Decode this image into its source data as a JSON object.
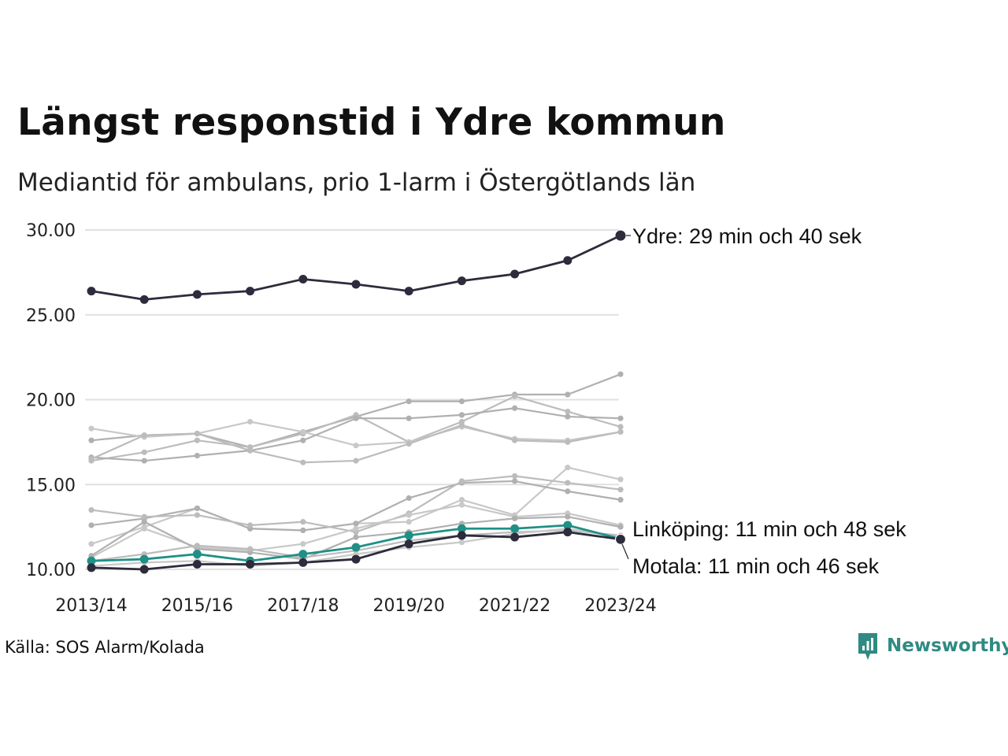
{
  "chart_data": {
    "type": "line",
    "title": "Längst responstid i Ydre kommun",
    "subtitle": "Mediantid för ambulans, prio 1-larm i Östergötlands län",
    "xlabel": "",
    "ylabel": "",
    "ylim": [
      10,
      30
    ],
    "grid": true,
    "x": [
      "2013/14",
      "2014/15",
      "2015/16",
      "2016/17",
      "2017/18",
      "2018/19",
      "2019/20",
      "2020/21",
      "2021/22",
      "2022/23",
      "2023/24"
    ],
    "x_tick_labels": [
      "2013/14",
      "2015/16",
      "2017/18",
      "2019/20",
      "2021/22",
      "2023/24"
    ],
    "y_tick_labels": [
      "10.00",
      "15.00",
      "20.00",
      "25.00",
      "30.00"
    ],
    "highlighted": [
      {
        "name": "Ydre",
        "color": "#2c2c3c",
        "label": "Ydre: 29 min och 40 sek",
        "values": [
          26.4,
          25.9,
          26.2,
          26.4,
          27.1,
          26.8,
          26.4,
          27.0,
          27.4,
          28.2,
          29.67
        ]
      },
      {
        "name": "Linköping",
        "color": "#1f9086",
        "label": "Linköping: 11 min och 48 sek",
        "values": [
          10.5,
          10.6,
          10.9,
          10.5,
          10.9,
          11.3,
          12.0,
          12.4,
          12.4,
          12.6,
          11.8
        ]
      },
      {
        "name": "Motala",
        "color": "#2c2c3c",
        "label": "Motala: 11 min och 46 sek",
        "values": [
          10.1,
          10.0,
          10.3,
          10.3,
          10.4,
          10.6,
          11.5,
          12.0,
          11.9,
          12.2,
          11.77
        ]
      }
    ],
    "background_series": [
      {
        "values": [
          17.6,
          17.9,
          18.0,
          17.2,
          18.1,
          19.0,
          19.9,
          19.9,
          20.3,
          20.3,
          21.5
        ]
      },
      {
        "values": [
          16.4,
          16.9,
          17.6,
          17.2,
          18.0,
          19.1,
          17.5,
          18.7,
          20.2,
          19.3,
          18.4
        ]
      },
      {
        "values": [
          18.3,
          17.8,
          18.0,
          18.7,
          18.1,
          17.3,
          17.5,
          18.4,
          17.7,
          17.6,
          18.1
        ]
      },
      {
        "values": [
          16.6,
          16.4,
          16.7,
          17.0,
          17.6,
          18.9,
          18.9,
          19.1,
          19.5,
          19.0,
          18.9
        ]
      },
      {
        "values": [
          16.5,
          17.9,
          18.0,
          17.0,
          16.3,
          16.4,
          17.4,
          18.5,
          17.6,
          17.5,
          18.1
        ]
      },
      {
        "values": [
          11.5,
          12.5,
          13.6,
          12.4,
          12.3,
          12.7,
          12.8,
          14.1,
          13.2,
          16.0,
          15.3
        ]
      },
      {
        "values": [
          12.6,
          13.0,
          13.6,
          12.4,
          12.3,
          12.7,
          14.2,
          15.1,
          15.2,
          14.6,
          14.1
        ]
      },
      {
        "values": [
          13.5,
          13.1,
          13.2,
          12.6,
          12.8,
          12.2,
          13.3,
          15.2,
          15.5,
          15.1,
          14.7
        ]
      },
      {
        "values": [
          10.7,
          12.4,
          11.3,
          11.1,
          11.5,
          12.4,
          13.2,
          13.8,
          13.1,
          13.3,
          12.6
        ]
      },
      {
        "values": [
          10.8,
          12.8,
          11.2,
          11.0,
          10.6,
          11.9,
          12.2,
          12.7,
          13.0,
          13.1,
          12.5
        ]
      },
      {
        "values": [
          10.5,
          10.9,
          11.4,
          11.2,
          10.7,
          11.1,
          11.7,
          12.0,
          12.2,
          12.3,
          12.0
        ]
      },
      {
        "values": [
          10.2,
          10.4,
          10.5,
          10.2,
          10.4,
          10.9,
          11.3,
          11.6,
          12.1,
          12.4,
          11.9
        ]
      }
    ],
    "background_color": "#b4b4b4",
    "annotations": [
      "Ydre: 29 min och 40 sek",
      "Linköping: 11 min och 48 sek",
      "Motala: 11 min och 46 sek"
    ]
  },
  "source": "Källa: SOS Alarm/Kolada",
  "brand": {
    "name": "Newsworthy",
    "color": "#2f8a83"
  },
  "colors": {
    "grid": "#e1e1e1",
    "text": "#222222"
  }
}
